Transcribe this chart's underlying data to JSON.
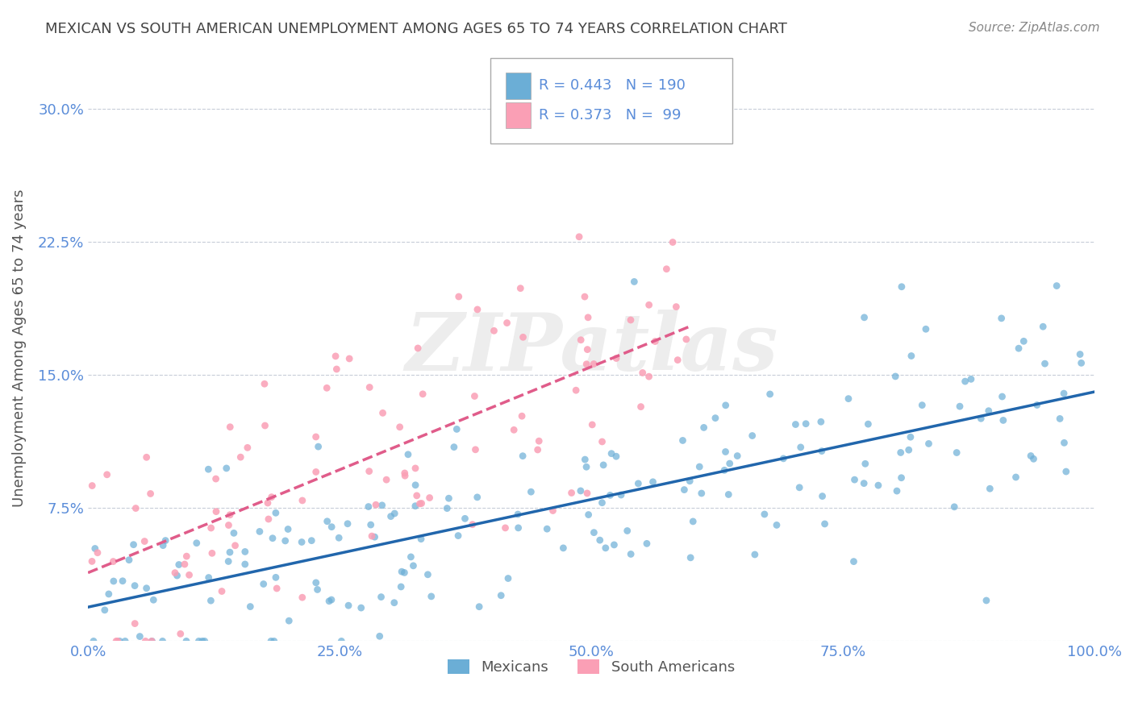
{
  "title": "MEXICAN VS SOUTH AMERICAN UNEMPLOYMENT AMONG AGES 65 TO 74 YEARS CORRELATION CHART",
  "source": "Source: ZipAtlas.com",
  "ylabel": "Unemployment Among Ages 65 to 74 years",
  "xlabel": "",
  "watermark": "ZIPatlas",
  "xlim": [
    0,
    1.0
  ],
  "ylim": [
    0,
    0.33
  ],
  "xticks": [
    0.0,
    0.25,
    0.5,
    0.75,
    1.0
  ],
  "xtick_labels": [
    "0.0%",
    "25.0%",
    "50.0%",
    "75.0%",
    "100.0%"
  ],
  "yticks": [
    0.0,
    0.075,
    0.15,
    0.225,
    0.3
  ],
  "ytick_labels": [
    "",
    "7.5%",
    "15.0%",
    "22.5%",
    "30.0%"
  ],
  "blue_R": 0.443,
  "blue_N": 190,
  "pink_R": 0.373,
  "pink_N": 99,
  "blue_color": "#6baed6",
  "pink_color": "#fa9fb5",
  "blue_line_color": "#2166ac",
  "pink_line_color": "#e05c8a",
  "grid_color": "#b0b8c8",
  "title_color": "#444444",
  "tick_color": "#5b8dd9",
  "legend_text_color": "#5b8dd9",
  "background_color": "#ffffff",
  "seed_blue": 42,
  "seed_pink": 99
}
